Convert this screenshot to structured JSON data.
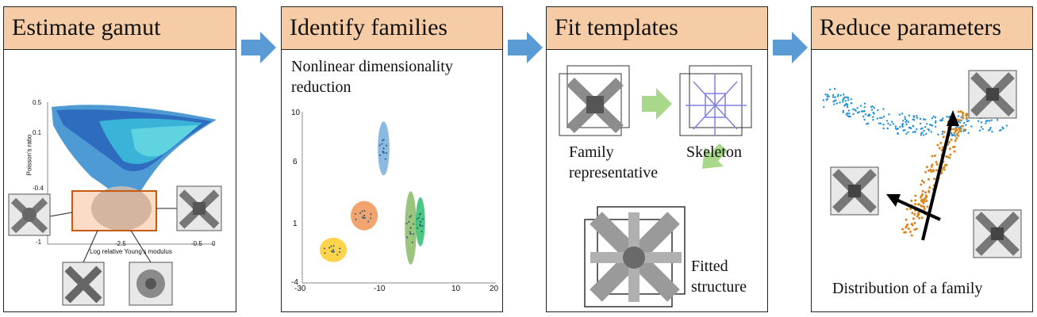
{
  "panels": [
    {
      "title": "Estimate gamut"
    },
    {
      "title": "Identify families"
    },
    {
      "title": "Fit templates"
    },
    {
      "title": "Reduce parameters"
    }
  ],
  "gamut": {
    "ylabel": "Poisson's ratio",
    "xlabel": "Log relative Young's modulus",
    "yticks": [
      "0.5",
      "0.1",
      "-0.4",
      "-1"
    ],
    "xticks": [
      "-2.5",
      "-0.5",
      "0"
    ]
  },
  "families": {
    "subtitle_line1": "Nonlinear dimensionality",
    "subtitle_line2": "reduction"
  },
  "templates": {
    "family_line1": "Family",
    "family_line2": "representative",
    "skeleton": "Skeleton",
    "fitted_line1": "Fitted",
    "fitted_line2": "structure"
  },
  "reduce": {
    "caption": "Distribution of a family"
  },
  "colors": {
    "header": "#f6cca6",
    "arrow": "#5b9bd5",
    "green_arrow": "#a8d88a",
    "highlight": "#c55a11"
  },
  "chart_data": {
    "type": "scatter",
    "x_range": [
      -30,
      20
    ],
    "y_range": [
      -4,
      10
    ],
    "x_ticks": [
      "-30",
      "-10",
      "10",
      "20"
    ],
    "y_ticks": [
      "10",
      "6",
      "1",
      "-4"
    ],
    "clusters": [
      {
        "color": "#5b9bd5",
        "cx": -9,
        "cy": 7,
        "rx": 1.5,
        "ry": 2.2
      },
      {
        "color": "#ed7d31",
        "cx": -14,
        "cy": 1.5,
        "rx": 3.5,
        "ry": 1.2
      },
      {
        "color": "#ffc000",
        "cx": -22,
        "cy": -1.3,
        "rx": 3.5,
        "ry": 1.0
      },
      {
        "color": "#70ad47",
        "cx": -2,
        "cy": 0.5,
        "rx": 1.5,
        "ry": 3.0
      },
      {
        "color": "#00b050",
        "cx": 0.5,
        "cy": 1.0,
        "rx": 1.2,
        "ry": 2.0
      }
    ]
  }
}
